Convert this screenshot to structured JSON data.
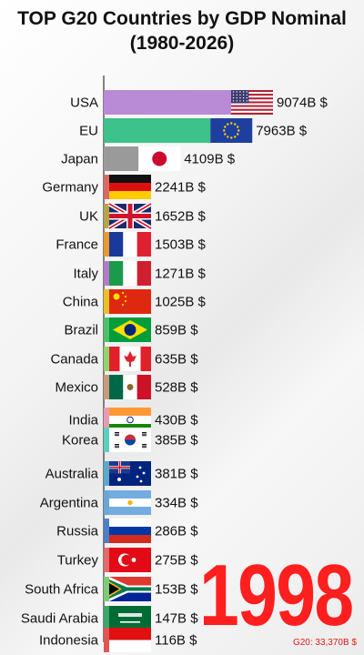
{
  "chart_data": {
    "type": "bar",
    "title_line1": "TOP G20 Countries by GDP Nominal",
    "title_line2": "(1980-2026)",
    "year": "1998",
    "total_label": "G20: 33,370B $",
    "unit": "B $",
    "categories": [
      "USA",
      "EU",
      "Japan",
      "Germany",
      "UK",
      "France",
      "Italy",
      "China",
      "Brazil",
      "Canada",
      "Mexico",
      "India",
      "Korea",
      "Australia",
      "Argentina",
      "Russia",
      "Turkey",
      "South Africa",
      "Saudi Arabia",
      "Indonesia"
    ],
    "values": [
      9074,
      7963,
      4109,
      2241,
      1652,
      1503,
      1271,
      1025,
      859,
      635,
      528,
      430,
      385,
      381,
      334,
      286,
      275,
      153,
      147,
      116
    ],
    "value_labels": [
      "9074B $",
      "7963B $",
      "4109B $",
      "2241B $",
      "1652B $",
      "1503B $",
      "1271B $",
      "1025B $",
      "859B $",
      "635B $",
      "528B $",
      "430B $",
      "385B $",
      "381B $",
      "334B $",
      "286B $",
      "275B $",
      "153B $",
      "147B $",
      "116B $"
    ],
    "bar_colors": [
      "#b98ad6",
      "#3cc28a",
      "#9a9a9a",
      "#d96a66",
      "#b8a24a",
      "#e89a2e",
      "#b57ac9",
      "#e8c02a",
      "#4fbf6a",
      "#8fd46a",
      "#c99a7a",
      "#e89ab5",
      "#5ccfbf",
      "#5aa9c8",
      "#6aa6d6",
      "#4f7fc6",
      "#e06b6b",
      "#7ecb77",
      "#3aa86a",
      "#e05555"
    ],
    "flags": [
      "usa-flag-icon",
      "eu-flag-icon",
      "japan-flag-icon",
      "germany-flag-icon",
      "uk-flag-icon",
      "france-flag-icon",
      "italy-flag-icon",
      "china-flag-icon",
      "brazil-flag-icon",
      "canada-flag-icon",
      "mexico-flag-icon",
      "india-flag-icon",
      "korea-flag-icon",
      "australia-flag-icon",
      "argentina-flag-icon",
      "russia-flag-icon",
      "turkey-flag-icon",
      "south-africa-flag-icon",
      "saudi-arabia-flag-icon",
      "indonesia-flag-icon"
    ],
    "xlim": [
      0,
      9074
    ],
    "grid": false,
    "legend": "none"
  }
}
